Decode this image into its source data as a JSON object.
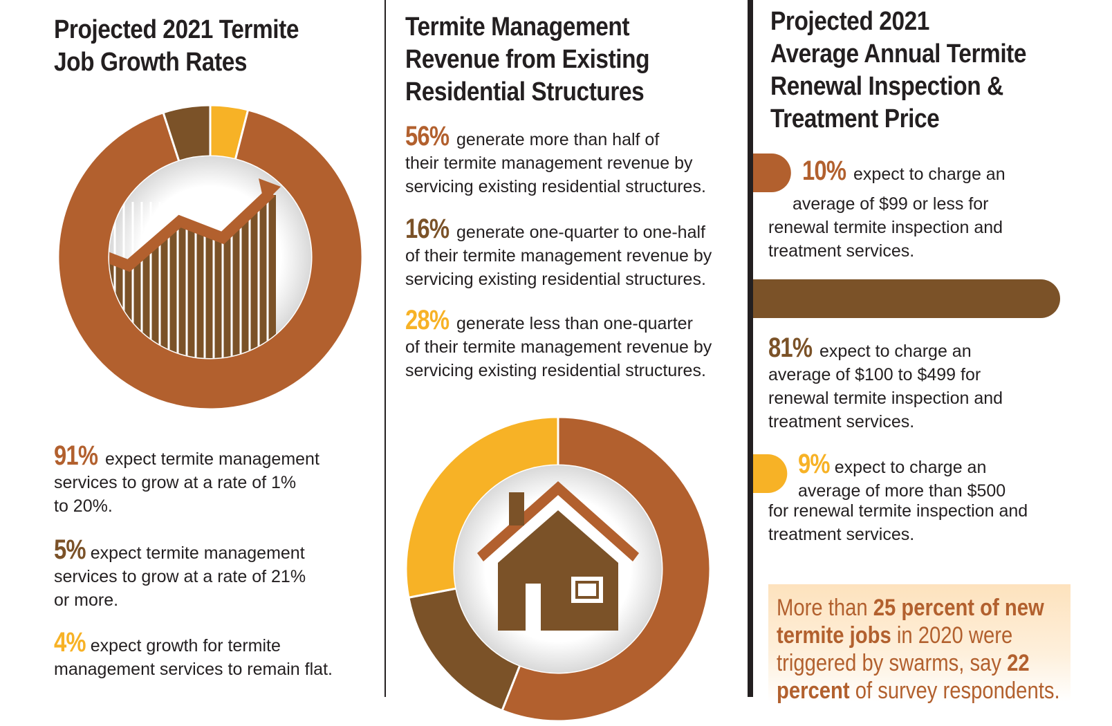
{
  "colors": {
    "rust": "#b2602e",
    "brown": "#7b5228",
    "gold": "#f7b226",
    "dark": "#231f20",
    "callout_bg": "#fde2bd"
  },
  "col1": {
    "title_line1": "Projected 2021 Termite",
    "title_line2": "Job Growth Rates",
    "icon": "rising-bar-chart-arrow-icon",
    "stats": [
      {
        "pct": "91%",
        "l1": "expect termite management",
        "l2": "services to grow at a rate of 1%",
        "l3": "to 20%."
      },
      {
        "pct": "5%",
        "l1": "expect termite management",
        "l2": "services to grow at a rate of 21%",
        "l3": "or more."
      },
      {
        "pct": "4%",
        "l1": "expect growth for termite",
        "l2": "management services to remain flat."
      }
    ]
  },
  "col2": {
    "title_line1": "Termite Management",
    "title_line2": "Revenue from Existing",
    "title_line3": "Residential Structures",
    "icon": "house-icon",
    "stats": [
      {
        "pct": "56%",
        "l1": "generate more than half of",
        "l2": "their termite management revenue by",
        "l3": "servicing existing residential structures."
      },
      {
        "pct": "16%",
        "l1": "generate one-quarter to one-half",
        "l2": "of their termite management revenue by",
        "l3": "servicing existing residential structures."
      },
      {
        "pct": "28%",
        "l1": "generate less than one-quarter",
        "l2": "of their termite management revenue by",
        "l3": "servicing existing residential structures."
      }
    ]
  },
  "col3": {
    "title_line1": "Projected 2021",
    "title_line2": "Average Annual Termite",
    "title_line3": "Renewal Inspection &",
    "title_line4": "Treatment Price",
    "stats": [
      {
        "pct": "10%",
        "l1": "expect to charge an",
        "l2": "average of $99 or less for",
        "l3": "renewal termite inspection and",
        "l4": "treatment services."
      },
      {
        "pct": "81%",
        "l1": "expect to charge an",
        "l2": "average of $100 to $499 for",
        "l3": "renewal termite inspection and",
        "l4": "treatment services."
      },
      {
        "pct": "9%",
        "l1": "expect to charge an",
        "l2": "average of more than $500",
        "l3": "for renewal termite inspection and",
        "l4": "treatment services."
      }
    ],
    "callout": {
      "p1": "More than ",
      "b1": "25 percent of new",
      "b2": "termite jobs",
      "p2": " in 2020 were",
      "p3": "triggered by swarms, say ",
      "b3": "22",
      "b4": "percent",
      "p4": " of survey respondents."
    }
  },
  "chart_data": [
    {
      "type": "pie",
      "title": "Projected 2021 Termite Job Growth Rates",
      "categories": [
        "grow at a rate of 1% to 20%",
        "grow at a rate of 21% or more",
        "remain flat"
      ],
      "values": [
        91,
        5,
        4
      ],
      "colors": [
        "#b2602e",
        "#7b5228",
        "#f7b226"
      ]
    },
    {
      "type": "pie",
      "title": "Termite Management Revenue from Existing Residential Structures",
      "categories": [
        "more than half",
        "one-quarter to one-half",
        "less than one-quarter"
      ],
      "values": [
        56,
        16,
        28
      ],
      "colors": [
        "#b2602e",
        "#7b5228",
        "#f7b226"
      ]
    },
    {
      "type": "bar",
      "title": "Projected 2021 Average Annual Termite Renewal Inspection & Treatment Price",
      "orientation": "horizontal",
      "categories": [
        "$99 or less",
        "$100 to $499",
        "more than $500"
      ],
      "values": [
        10,
        81,
        9
      ],
      "colors": [
        "#b2602e",
        "#7b5228",
        "#f7b226"
      ]
    }
  ]
}
